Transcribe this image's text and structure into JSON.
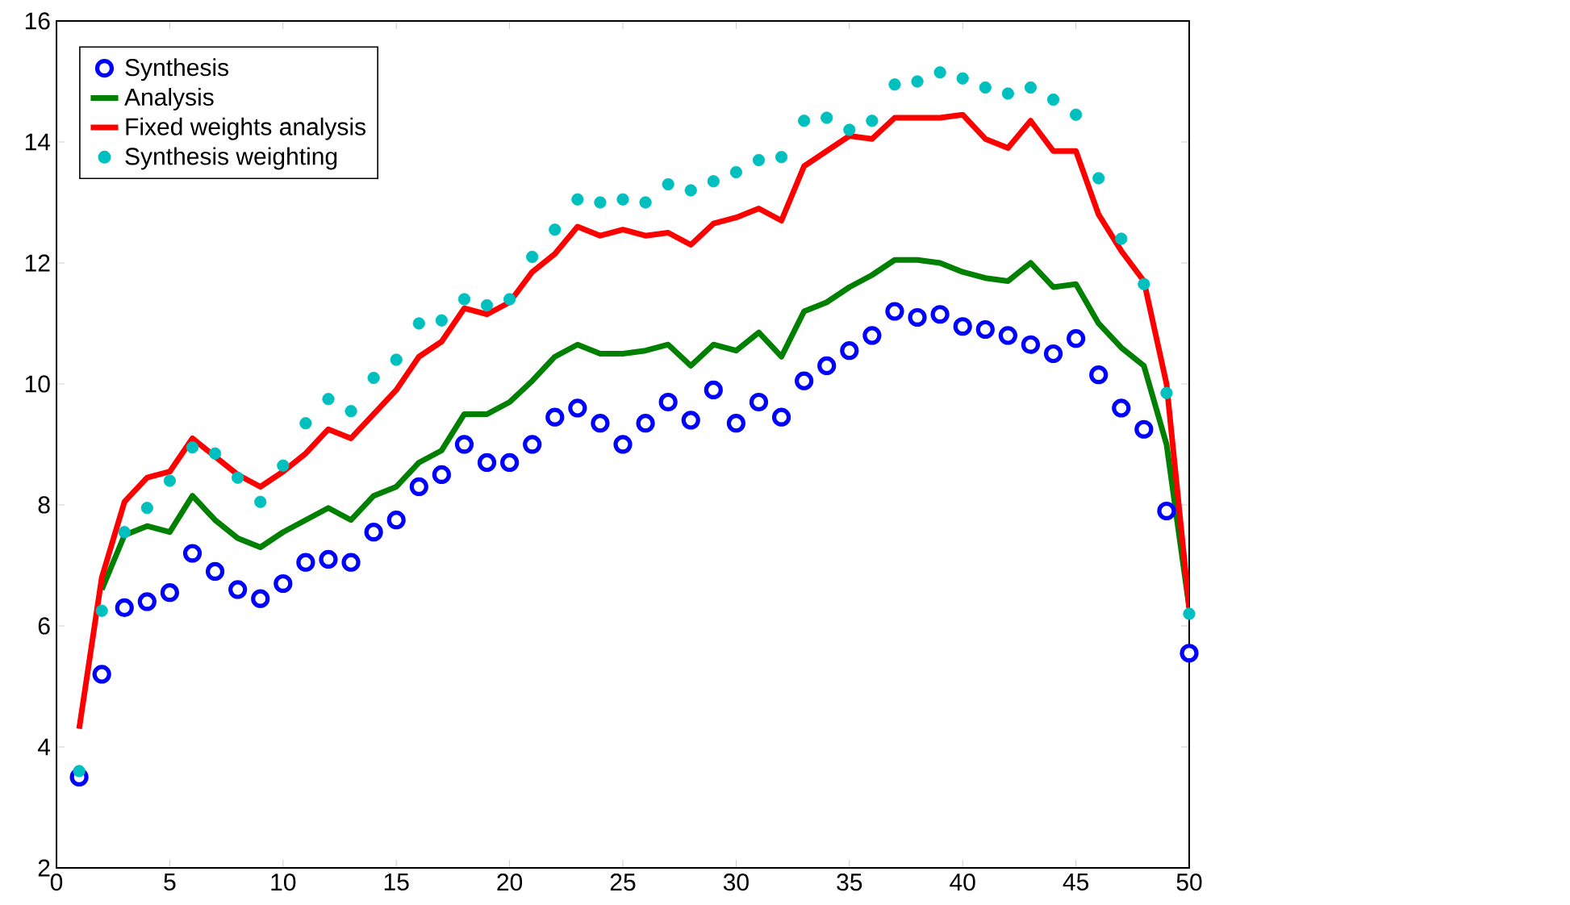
{
  "chart_data": {
    "type": "line",
    "x": [
      1,
      2,
      3,
      4,
      5,
      6,
      7,
      8,
      9,
      10,
      11,
      12,
      13,
      14,
      15,
      16,
      17,
      18,
      19,
      20,
      21,
      22,
      23,
      24,
      25,
      26,
      27,
      28,
      29,
      30,
      31,
      32,
      33,
      34,
      35,
      36,
      37,
      38,
      39,
      40,
      41,
      42,
      43,
      44,
      45,
      46,
      47,
      48,
      49,
      50
    ],
    "series": [
      {
        "name": "Synthesis",
        "type": "scatter",
        "marker": "circle",
        "color": "#0000ff",
        "values": [
          3.5,
          5.2,
          6.3,
          6.4,
          6.55,
          7.2,
          6.9,
          6.6,
          6.45,
          6.7,
          7.05,
          7.1,
          7.05,
          7.55,
          7.75,
          8.3,
          8.5,
          9.0,
          8.7,
          8.7,
          9.0,
          9.45,
          9.6,
          9.35,
          9.0,
          9.35,
          9.7,
          9.4,
          9.9,
          9.35,
          9.7,
          9.45,
          10.05,
          10.3,
          10.55,
          10.8,
          11.2,
          11.1,
          11.15,
          10.95,
          10.9,
          10.8,
          10.65,
          10.5,
          10.75,
          10.15,
          9.6,
          9.25,
          7.9,
          5.55
        ]
      },
      {
        "name": "Analysis",
        "line_style": "solid",
        "color": "#008000",
        "values": [
          null,
          6.6,
          7.5,
          7.65,
          7.55,
          8.15,
          7.75,
          7.45,
          7.3,
          7.55,
          7.75,
          7.95,
          7.75,
          8.15,
          8.3,
          8.7,
          8.9,
          9.5,
          9.5,
          9.7,
          10.05,
          10.45,
          10.65,
          10.5,
          10.5,
          10.55,
          10.65,
          10.3,
          10.65,
          10.55,
          10.85,
          10.45,
          11.2,
          11.35,
          11.6,
          11.8,
          12.05,
          12.05,
          12.0,
          11.85,
          11.75,
          11.7,
          12.0,
          11.6,
          11.65,
          11.0,
          10.6,
          10.3,
          9.0,
          6.3
        ]
      },
      {
        "name": "Fixed weights analysis",
        "line_style": "solid",
        "color": "#ff0000",
        "values": [
          4.3,
          6.8,
          8.05,
          8.45,
          8.55,
          9.1,
          8.8,
          8.5,
          8.3,
          8.55,
          8.85,
          9.25,
          9.1,
          9.5,
          9.9,
          10.45,
          10.7,
          11.25,
          11.15,
          11.35,
          11.85,
          12.15,
          12.6,
          12.45,
          12.55,
          12.45,
          12.5,
          12.3,
          12.65,
          12.75,
          12.9,
          12.7,
          13.6,
          13.85,
          14.1,
          14.05,
          14.4,
          14.4,
          14.4,
          14.45,
          14.05,
          13.9,
          14.35,
          13.85,
          13.85,
          12.8,
          12.2,
          11.7,
          10.0,
          6.3
        ]
      },
      {
        "name": "Synthesis weighting",
        "type": "scatter",
        "marker": "circle",
        "color": "#00bfbf",
        "values": [
          3.6,
          6.25,
          7.55,
          7.95,
          8.4,
          8.95,
          8.85,
          8.45,
          8.05,
          8.65,
          9.35,
          9.75,
          9.55,
          10.1,
          10.4,
          11.0,
          11.05,
          11.4,
          11.3,
          11.4,
          12.1,
          12.55,
          13.05,
          13.0,
          13.05,
          13.0,
          13.3,
          13.2,
          13.35,
          13.5,
          13.7,
          13.75,
          14.35,
          14.4,
          14.2,
          14.35,
          14.95,
          15.0,
          15.15,
          15.05,
          14.9,
          14.8,
          14.9,
          14.7,
          14.45,
          13.4,
          12.4,
          11.65,
          9.85,
          6.2
        ]
      }
    ],
    "xlim": [
      0,
      50
    ],
    "xticks": [
      0,
      5,
      10,
      15,
      20,
      25,
      30,
      35,
      40,
      45,
      50
    ],
    "ylim": [
      2,
      16
    ],
    "yticks": [
      2,
      4,
      6,
      8,
      10,
      12,
      14,
      16
    ],
    "grid": false,
    "legend": "top left"
  }
}
